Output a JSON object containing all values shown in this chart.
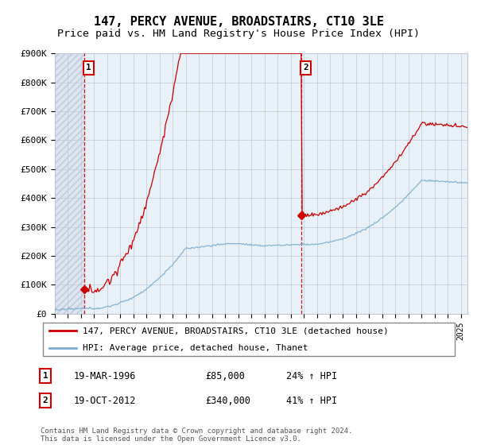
{
  "title": "147, PERCY AVENUE, BROADSTAIRS, CT10 3LE",
  "subtitle": "Price paid vs. HM Land Registry's House Price Index (HPI)",
  "ylim": [
    0,
    900000
  ],
  "yticks": [
    0,
    100000,
    200000,
    300000,
    400000,
    500000,
    600000,
    700000,
    800000,
    900000
  ],
  "ytick_labels": [
    "£0",
    "£100K",
    "£200K",
    "£300K",
    "£400K",
    "£500K",
    "£600K",
    "£700K",
    "£800K",
    "£900K"
  ],
  "xlim_start": 1994.0,
  "xlim_end": 2025.5,
  "purchase1_x": 1996.22,
  "purchase1_y": 85000,
  "purchase1_label": "1",
  "purchase1_date": "19-MAR-1996",
  "purchase1_price": "£85,000",
  "purchase1_hpi": "24% ↑ HPI",
  "purchase2_x": 2012.8,
  "purchase2_y": 340000,
  "purchase2_label": "2",
  "purchase2_date": "19-OCT-2012",
  "purchase2_price": "£340,000",
  "purchase2_hpi": "41% ↑ HPI",
  "red_line_color": "#cc0000",
  "blue_line_color": "#7aadcf",
  "dashed_line_color": "#cc0000",
  "grid_color": "#c0c8d8",
  "legend_line1": "147, PERCY AVENUE, BROADSTAIRS, CT10 3LE (detached house)",
  "legend_line2": "HPI: Average price, detached house, Thanet",
  "footer": "Contains HM Land Registry data © Crown copyright and database right 2024.\nThis data is licensed under the Open Government Licence v3.0.",
  "title_fontsize": 11,
  "subtitle_fontsize": 9.5,
  "axis_fontsize": 8
}
